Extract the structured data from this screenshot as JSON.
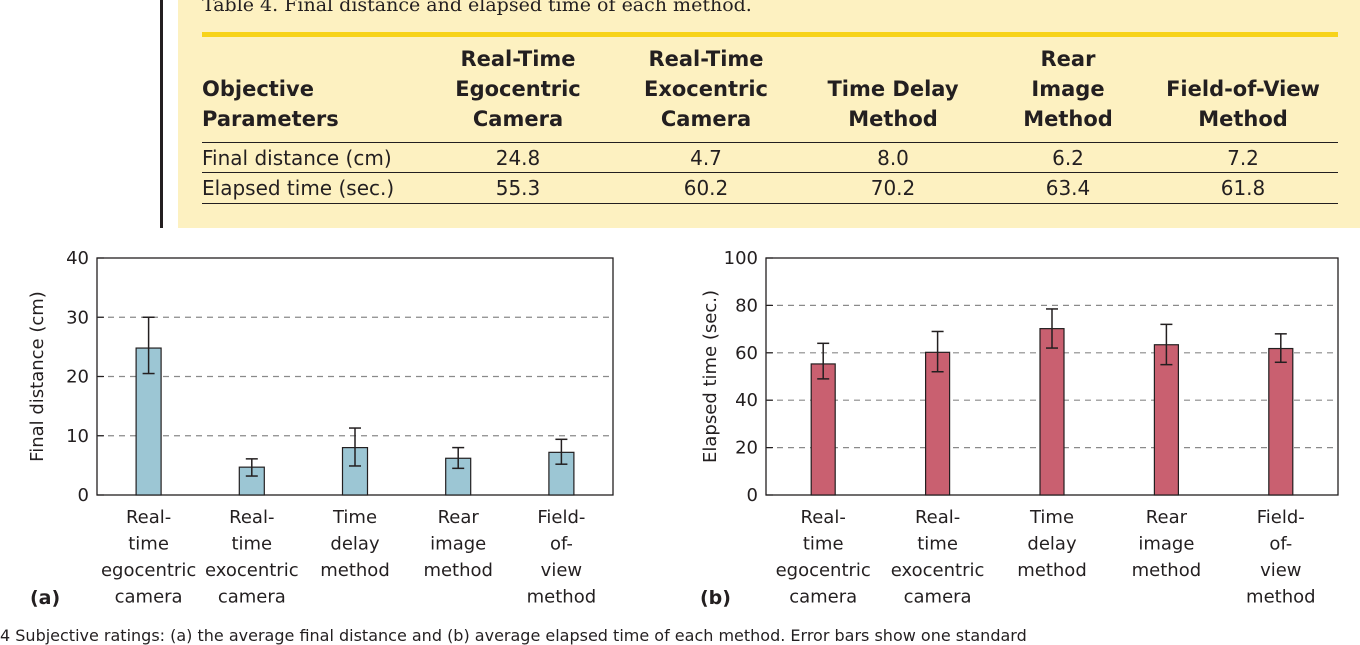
{
  "table": {
    "caption": "Table 4. Final distance and elapsed time of each method.",
    "headers": [
      "Objective\nParameters",
      "Real-Time\nEgocentric\nCamera",
      "Real-Time\nExocentric\nCamera",
      "Time Delay\nMethod",
      "Rear\nImage\nMethod",
      "Field-of-View\nMethod"
    ],
    "rows": [
      [
        "Final distance (cm)",
        "24.8",
        "4.7",
        "8.0",
        "6.2",
        "7.2"
      ],
      [
        "Elapsed time (sec.)",
        "55.3",
        "60.2",
        "70.2",
        "63.4",
        "61.8"
      ]
    ]
  },
  "figure_footer": "4  Subjective ratings: (a) the average final distance and (b) average elapsed time of each method. Error bars show one standard",
  "chart_data": [
    {
      "type": "bar",
      "panel_label": "(a)",
      "categories": [
        "Real-\ntime\negocentric\ncamera",
        "Real-\ntime\nexocentric\ncamera",
        "Time\ndelay\nmethod",
        "Rear\nimage\nmethod",
        "Field-\nof-\nview\nmethod"
      ],
      "values": [
        24.8,
        4.7,
        8.0,
        6.2,
        7.2
      ],
      "error_low": [
        20.5,
        3.2,
        4.9,
        4.5,
        5.2
      ],
      "error_high": [
        30.0,
        6.1,
        11.3,
        8.0,
        9.4
      ],
      "xlabel": "",
      "ylabel": "Final distance (cm)",
      "ylim": [
        0,
        40
      ],
      "yticks": [
        0,
        10,
        20,
        30,
        40
      ],
      "grid": "dashed horizontal",
      "bar_color": "#9cc6d4"
    },
    {
      "type": "bar",
      "panel_label": "(b)",
      "categories": [
        "Real-\ntime\negocentric\ncamera",
        "Real-\ntime\nexocentric\ncamera",
        "Time\ndelay\nmethod",
        "Rear\nimage\nmethod",
        "Field-\nof-\nview\nmethod"
      ],
      "values": [
        55.3,
        60.2,
        70.2,
        63.4,
        61.8
      ],
      "error_low": [
        49.0,
        52.0,
        62.0,
        55.0,
        56.0
      ],
      "error_high": [
        64.0,
        69.0,
        78.5,
        72.0,
        68.0
      ],
      "xlabel": "",
      "ylabel": "Elapsed time (sec.)",
      "ylim": [
        0,
        100
      ],
      "yticks": [
        0,
        20,
        40,
        60,
        80,
        100
      ],
      "grid": "dashed horizontal",
      "bar_color": "#c96070"
    }
  ]
}
